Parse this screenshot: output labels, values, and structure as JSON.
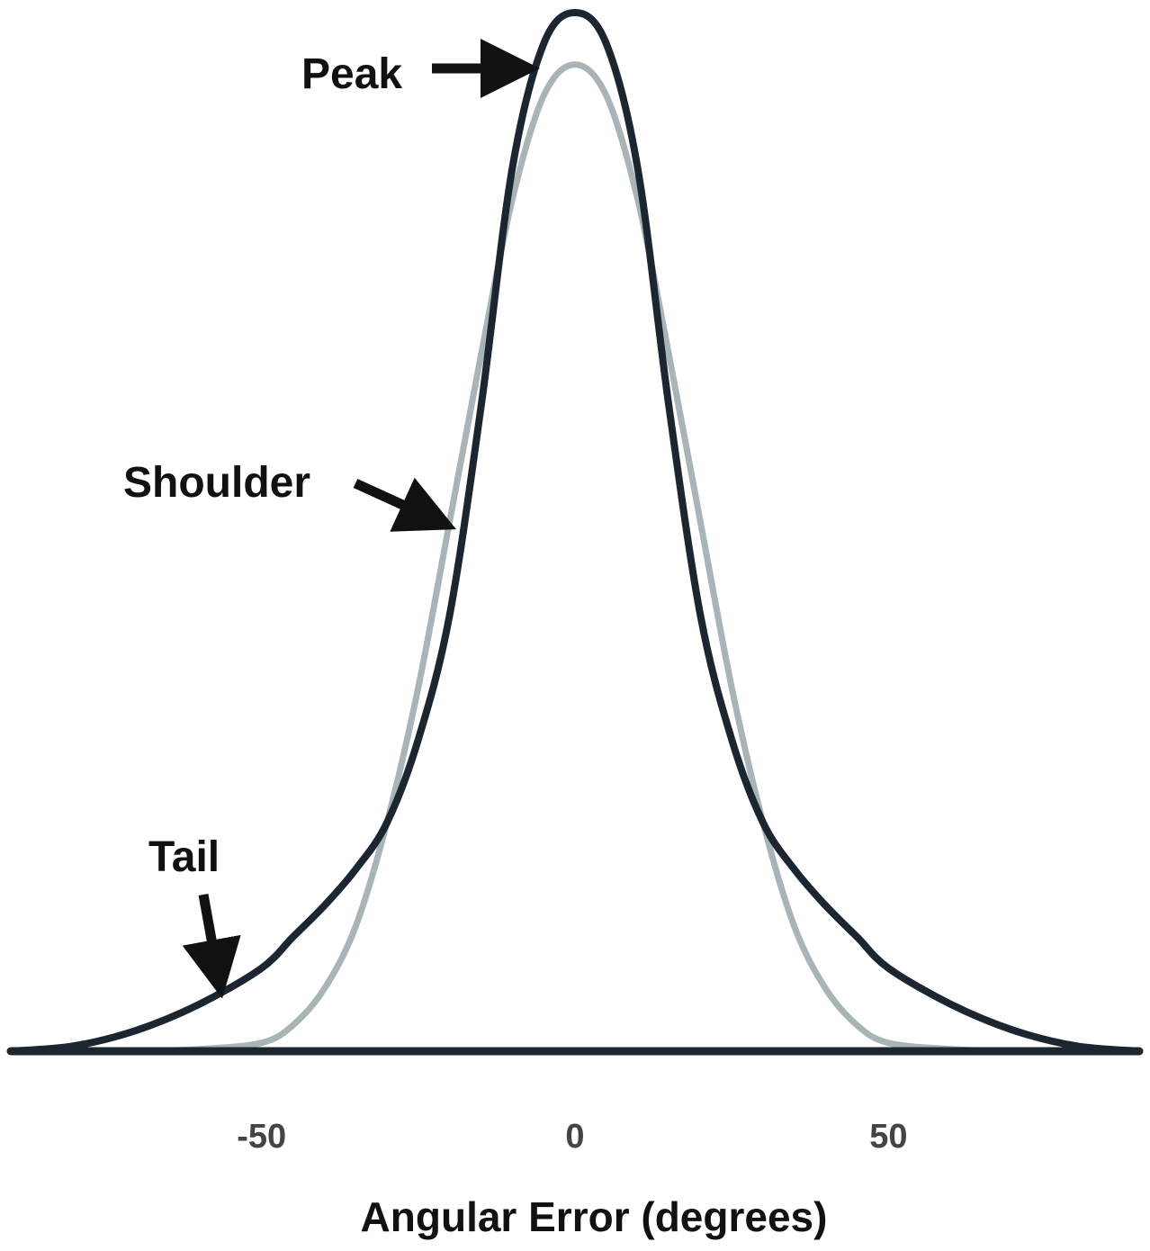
{
  "chart_data": {
    "type": "line",
    "title": "",
    "xlabel": "Angular Error (degrees)",
    "ylabel": "",
    "xlim": [
      -90,
      90
    ],
    "ylim": [
      0,
      1.0
    ],
    "grid": false,
    "x_ticks": [
      -50,
      0,
      50
    ],
    "x_tick_labels": [
      "-50",
      "0",
      "50"
    ],
    "series": [
      {
        "color": "#a9b4b6",
        "x": [
          -90,
          -70,
          -60,
          -50,
          -45,
          -40,
          -35,
          -30,
          -25,
          -20,
          -15,
          -10,
          -5,
          0,
          5,
          10,
          15,
          20,
          25,
          30,
          35,
          40,
          45,
          50,
          60,
          70,
          90
        ],
        "y": [
          0,
          0,
          0.002,
          0.008,
          0.025,
          0.06,
          0.12,
          0.22,
          0.35,
          0.51,
          0.67,
          0.82,
          0.92,
          0.95,
          0.92,
          0.82,
          0.67,
          0.51,
          0.35,
          0.22,
          0.12,
          0.06,
          0.025,
          0.008,
          0.002,
          0,
          0
        ]
      },
      {
        "color": "#1c2631",
        "x": [
          -90,
          -80,
          -70,
          -60,
          -50,
          -45,
          -40,
          -35,
          -30,
          -25,
          -20,
          -15,
          -10,
          -5,
          0,
          5,
          10,
          15,
          20,
          25,
          30,
          35,
          40,
          45,
          50,
          60,
          70,
          80,
          90
        ],
        "y": [
          0,
          0.005,
          0.02,
          0.045,
          0.08,
          0.11,
          0.14,
          0.175,
          0.22,
          0.3,
          0.42,
          0.62,
          0.85,
          0.97,
          1.0,
          0.97,
          0.85,
          0.62,
          0.42,
          0.3,
          0.22,
          0.175,
          0.14,
          0.11,
          0.08,
          0.045,
          0.02,
          0.005,
          0
        ]
      }
    ],
    "annotations": [
      {
        "text": "Peak",
        "x": 0,
        "y": 1.0
      },
      {
        "text": "Shoulder",
        "x": -20,
        "y": 0.51
      },
      {
        "text": "Tail",
        "x": -55,
        "y": 0.055
      }
    ]
  }
}
